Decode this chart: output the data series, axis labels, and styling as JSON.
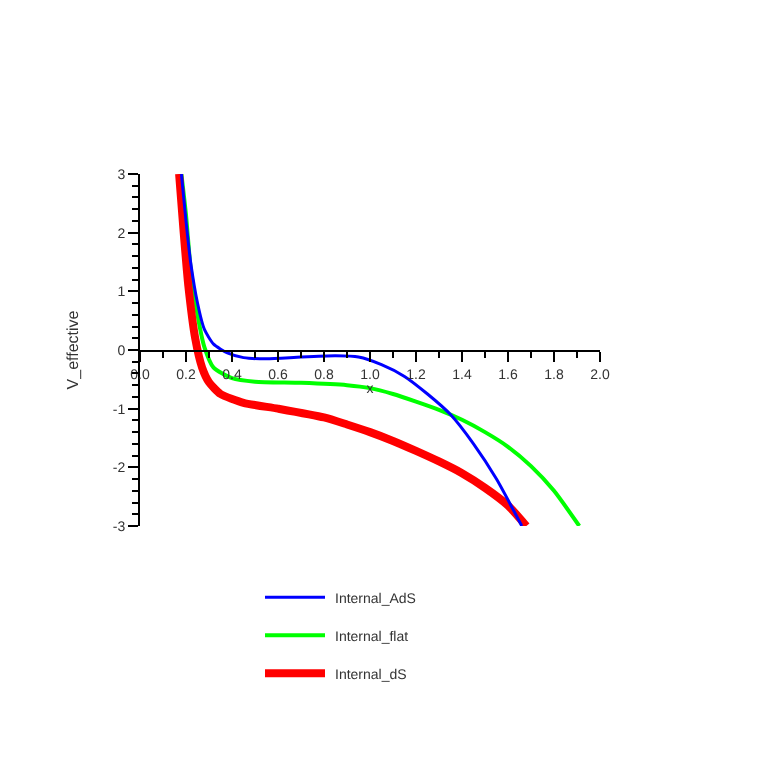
{
  "chart_data": {
    "type": "line",
    "xlabel": "x",
    "ylabel": "V_effective",
    "xlim": [
      0,
      2.0
    ],
    "ylim": [
      -3,
      3
    ],
    "xticks": [
      {
        "value": 0,
        "label": "0.0"
      },
      0.2,
      0.4,
      0.6,
      0.8,
      {
        "value": 1,
        "label": "1.0"
      },
      1.2,
      1.4,
      1.6,
      1.8,
      {
        "value": 2,
        "label": "2.0"
      }
    ],
    "yticks": [
      -3,
      -2,
      -1,
      0,
      1,
      2,
      3
    ],
    "legend": "bottom",
    "marker": "none",
    "line_style": "solid",
    "series": [
      {
        "name": "Internal_AdS",
        "color": "#0000ff",
        "x": [
          0.18,
          0.2,
          0.22,
          0.25,
          0.28,
          0.32,
          0.38,
          0.45,
          0.55,
          0.7,
          0.85,
          0.95,
          1.05,
          1.15,
          1.25,
          1.35,
          1.45,
          1.55,
          1.66
        ],
        "values": [
          3,
          2.2,
          1.5,
          0.8,
          0.35,
          0.1,
          -0.05,
          -0.13,
          -0.15,
          -0.12,
          -0.1,
          -0.12,
          -0.25,
          -0.45,
          -0.75,
          -1.1,
          -1.6,
          -2.2,
          -3
        ]
      },
      {
        "name": "Internal_flat",
        "color": "#00ff00",
        "x": [
          0.18,
          0.2,
          0.22,
          0.25,
          0.28,
          0.32,
          0.4,
          0.5,
          0.7,
          0.9,
          1.0,
          1.1,
          1.2,
          1.3,
          1.4,
          1.5,
          1.6,
          1.7,
          1.8,
          1.91
        ],
        "values": [
          3,
          2.3,
          1.4,
          0.6,
          0.05,
          -0.3,
          -0.48,
          -0.54,
          -0.56,
          -0.6,
          -0.65,
          -0.75,
          -0.88,
          -1.02,
          -1.19,
          -1.4,
          -1.65,
          -1.98,
          -2.4,
          -3
        ]
      },
      {
        "name": "Internal_dS",
        "color": "#ff0000",
        "x": [
          0.17,
          0.19,
          0.21,
          0.24,
          0.27,
          0.3,
          0.35,
          0.45,
          0.6,
          0.8,
          0.9,
          1.0,
          1.1,
          1.2,
          1.3,
          1.4,
          1.5,
          1.6,
          1.68
        ],
        "values": [
          3,
          2,
          1.1,
          0.2,
          -0.3,
          -0.55,
          -0.75,
          -0.9,
          -1.0,
          -1.15,
          -1.27,
          -1.4,
          -1.55,
          -1.72,
          -1.9,
          -2.1,
          -2.35,
          -2.65,
          -3
        ]
      }
    ]
  }
}
